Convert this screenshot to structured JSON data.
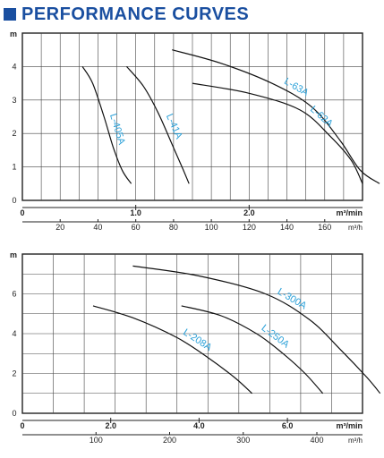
{
  "header": {
    "title": "PERFORMANCE CURVES"
  },
  "chart_data": [
    {
      "type": "line",
      "ylabel": "m",
      "ylim": [
        0,
        5
      ],
      "yticks": [
        "0",
        "1",
        "2",
        "3",
        "4"
      ],
      "x_primary": {
        "unit": "m³/min",
        "lim": [
          0,
          3.0
        ],
        "ticks": [
          {
            "v": 1.0,
            "label": "1.0"
          },
          {
            "v": 2.0,
            "label": "2.0"
          }
        ],
        "zero_label": "0"
      },
      "x_secondary": {
        "unit": "m³/h",
        "ticks": [
          20,
          40,
          60,
          80,
          100,
          120,
          140,
          160
        ]
      },
      "series": [
        {
          "name": "L-405A",
          "points": [
            [
              0.53,
              4.0
            ],
            [
              0.62,
              3.5
            ],
            [
              0.72,
              2.5
            ],
            [
              0.8,
              1.6
            ],
            [
              0.88,
              0.9
            ],
            [
              0.96,
              0.5
            ]
          ]
        },
        {
          "name": "L-41A",
          "points": [
            [
              0.92,
              4.0
            ],
            [
              1.07,
              3.4
            ],
            [
              1.2,
              2.6
            ],
            [
              1.33,
              1.6
            ],
            [
              1.42,
              0.9
            ],
            [
              1.47,
              0.5
            ]
          ]
        },
        {
          "name": "L-63A",
          "points": [
            [
              1.32,
              4.5
            ],
            [
              1.75,
              4.1
            ],
            [
              2.2,
              3.5
            ],
            [
              2.55,
              2.8
            ],
            [
              2.8,
              1.8
            ],
            [
              2.98,
              0.9
            ],
            [
              3.15,
              0.5
            ]
          ]
        },
        {
          "name": "L-62A",
          "points": [
            [
              1.5,
              3.5
            ],
            [
              2.0,
              3.2
            ],
            [
              2.45,
              2.7
            ],
            [
              2.72,
              1.9
            ],
            [
              2.9,
              1.2
            ],
            [
              3.0,
              0.5
            ]
          ]
        }
      ]
    },
    {
      "type": "line",
      "ylabel": "m",
      "ylim": [
        0,
        8
      ],
      "yticks": [
        "0",
        "2",
        "4",
        "6"
      ],
      "x_primary": {
        "unit": "m³/min",
        "lim": [
          0,
          7.7
        ],
        "ticks": [
          {
            "v": 2.0,
            "label": "2.0"
          },
          {
            "v": 4.0,
            "label": "4.0"
          },
          {
            "v": 6.0,
            "label": "6.0"
          }
        ],
        "zero_label": "0"
      },
      "x_secondary": {
        "unit": "m³/h",
        "ticks": [
          100,
          200,
          300,
          400
        ]
      },
      "series": [
        {
          "name": "L-208A",
          "points": [
            [
              1.6,
              5.4
            ],
            [
              2.5,
              4.8
            ],
            [
              3.5,
              3.8
            ],
            [
              4.2,
              2.8
            ],
            [
              4.8,
              1.8
            ],
            [
              5.2,
              1.0
            ]
          ]
        },
        {
          "name": "L-250A",
          "points": [
            [
              3.6,
              5.4
            ],
            [
              4.5,
              4.9
            ],
            [
              5.3,
              4.0
            ],
            [
              5.9,
              3.0
            ],
            [
              6.4,
              2.0
            ],
            [
              6.8,
              1.0
            ]
          ]
        },
        {
          "name": "L-300A",
          "points": [
            [
              2.5,
              7.4
            ],
            [
              4.0,
              6.9
            ],
            [
              5.5,
              6.0
            ],
            [
              6.5,
              4.7
            ],
            [
              7.2,
              3.2
            ],
            [
              7.8,
              1.8
            ],
            [
              8.1,
              1.0
            ]
          ]
        }
      ]
    }
  ]
}
